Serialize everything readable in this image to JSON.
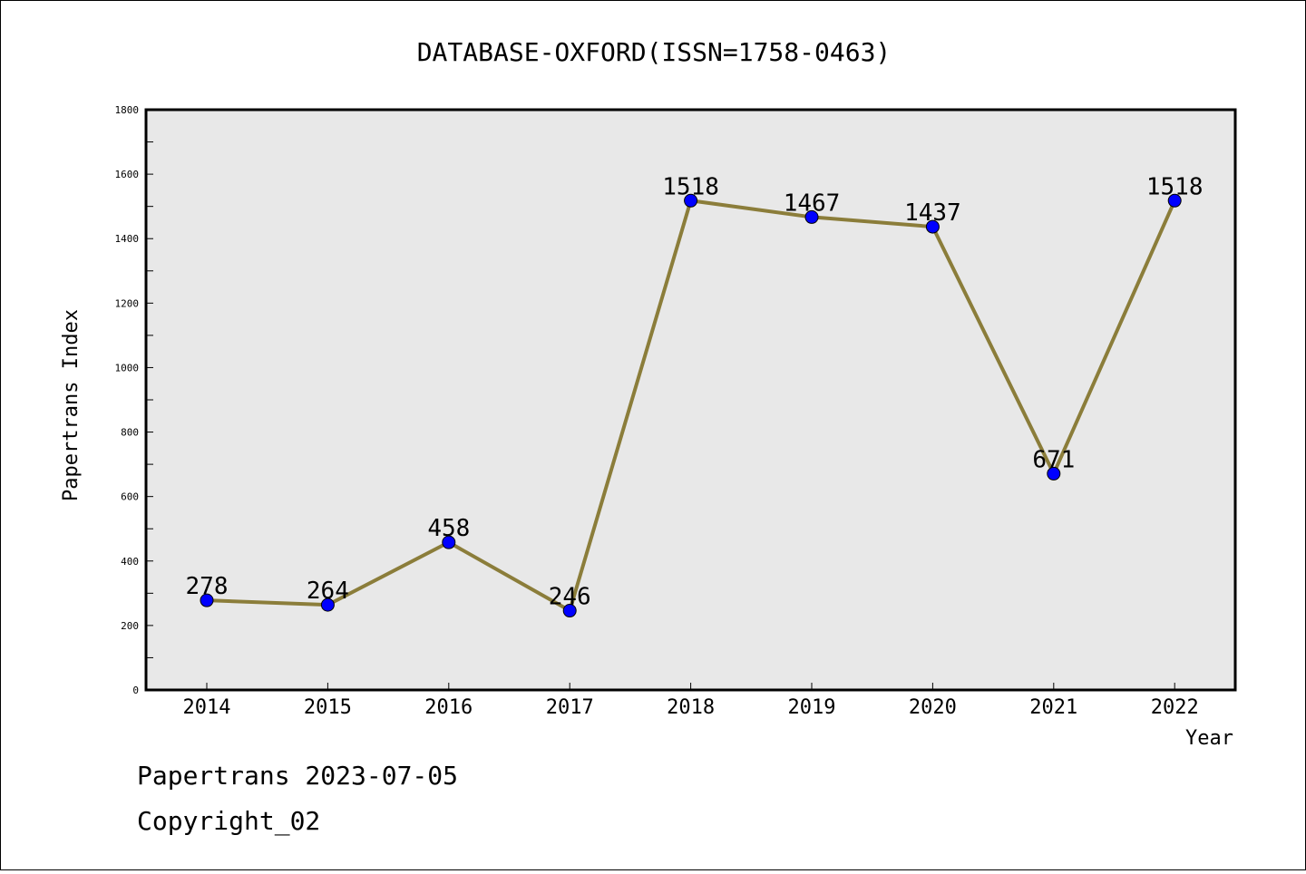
{
  "chart_data": {
    "type": "line",
    "title": "DATABASE-OXFORD(ISSN=1758-0463)",
    "xlabel": "Year",
    "ylabel": "Papertrans Index",
    "ylim": [
      0,
      1800
    ],
    "yticks": [
      0,
      200,
      400,
      600,
      800,
      1000,
      1200,
      1400,
      1600,
      1800
    ],
    "categories": [
      "2014",
      "2015",
      "2016",
      "2017",
      "2018",
      "2019",
      "2020",
      "2021",
      "2022"
    ],
    "series": [
      {
        "values": [
          278,
          264,
          458,
          246,
          1518,
          1467,
          1437,
          671,
          1518
        ]
      }
    ],
    "grid": false,
    "colors": {
      "line": "#8B7D3A",
      "marker": "#0000FF",
      "plot_bg": "#E8E8E8"
    }
  },
  "footer": {
    "line1": "Papertrans 2023-07-05",
    "line2": "Copyright_02"
  }
}
